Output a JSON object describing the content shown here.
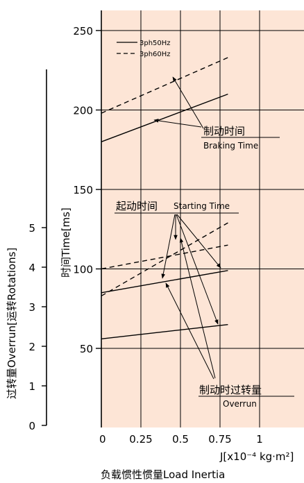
{
  "chart_data": {
    "type": "line",
    "xlabel": "J[x10⁻⁴ kg·m²]",
    "xlabel_bottom": "负载惯性惯量Load Inertia",
    "ylabel": "时间Time[ms]",
    "ylabel_secondary": "过转量Overrun[运转Rotations]",
    "x_ticks": [
      "0",
      "0.25",
      "0.5",
      "0.75",
      "1"
    ],
    "y_ticks": [
      "50",
      "100",
      "150",
      "200",
      "250"
    ],
    "y2_ticks": [
      "0",
      "1",
      "2",
      "3",
      "4",
      "5"
    ],
    "xlim": [
      0,
      1.25
    ],
    "ylim": [
      0,
      260
    ],
    "y2lim": [
      0,
      5.5
    ],
    "legend": [
      {
        "name": "3ph50Hz",
        "style": "solid"
      },
      {
        "name": "3ph60Hz",
        "style": "dashed"
      }
    ],
    "legend_position": "top-left",
    "grid": true,
    "background_color": "#fde5d6",
    "series": [
      {
        "group": "braking",
        "style": "solid",
        "x": [
          0,
          0.8
        ],
        "y": [
          180,
          210
        ]
      },
      {
        "group": "braking",
        "style": "dashed",
        "x": [
          0,
          0.8
        ],
        "y": [
          198,
          233
        ]
      },
      {
        "group": "starting",
        "style": "solid",
        "x": [
          0,
          0.8
        ],
        "y": [
          85,
          99
        ]
      },
      {
        "group": "starting",
        "style": "dashed",
        "x": [
          0,
          0.8
        ],
        "y": [
          83,
          129
        ]
      },
      {
        "group": "overrun",
        "style": "solid",
        "x": [
          0,
          0.8
        ],
        "y": [
          56,
          65
        ]
      },
      {
        "group": "overrun",
        "style": "dashed",
        "x": [
          0,
          0.8
        ],
        "y": [
          100,
          115
        ]
      }
    ],
    "annotations": [
      {
        "text_cn": "制动时间",
        "text_en": "Braking Time"
      },
      {
        "text_cn": "起动时间",
        "text_en": "Starting Time"
      },
      {
        "text_cn": "制动时过转量",
        "text_en": "Overrun"
      }
    ]
  }
}
